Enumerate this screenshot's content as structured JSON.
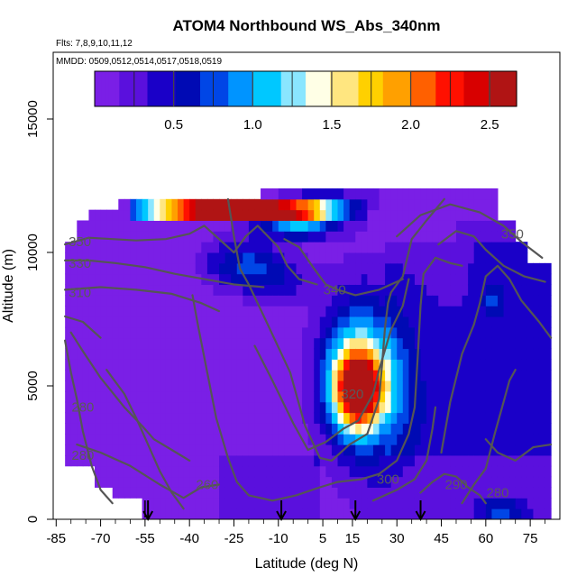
{
  "chart_data": {
    "type": "heatmap",
    "title": "ATOM4 Northbound WS_Abs_340nm",
    "flights_note": "Flts: 7,8,9,10,11,12",
    "dates_note": "MMDD: 0509,0512,0514,0517,0518,0519",
    "xlabel": "Latitude (deg N)",
    "ylabel": "Altitude (m)",
    "xlim": [
      -86,
      85
    ],
    "ylim": [
      0,
      17500
    ],
    "xticks": [
      -85,
      -70,
      -55,
      -40,
      -25,
      -10,
      5,
      15,
      30,
      45,
      60,
      75
    ],
    "xtick_labels": [
      "-85",
      "-70",
      "-55",
      "-40",
      "-25",
      "-10",
      "5",
      "15",
      "30",
      "45",
      "60",
      "75"
    ],
    "xminor": [
      -80,
      -75,
      -65,
      -60,
      -50,
      -45,
      -35,
      -30,
      -20,
      -15,
      -5,
      0,
      10,
      20,
      25,
      35,
      40,
      50,
      55,
      65,
      70,
      80
    ],
    "yticks": [
      0,
      5000,
      10000,
      15000
    ],
    "ytick_labels": [
      "0",
      "5000",
      "10000",
      "15000"
    ],
    "colorbar": {
      "min": 0.0,
      "max": 2.67,
      "ticks": [
        0.5,
        1.0,
        1.5,
        2.0,
        2.5
      ],
      "tick_labels": [
        "0.5",
        "1.0",
        "1.5",
        "2.0",
        "2.5"
      ],
      "colors": [
        "#7a1fe6",
        "#5a10dd",
        "#1a00c8",
        "#000ab4",
        "#0046e6",
        "#0094ff",
        "#00c8ff",
        "#8ae6ff",
        "#ffffe6",
        "#ffe680",
        "#ffd000",
        "#ffa000",
        "#ff6000",
        "#ff1000",
        "#d80000",
        "#b01414"
      ]
    },
    "arrows_latitude": [
      -54,
      -9,
      16,
      38
    ],
    "contour_labels": [
      {
        "text": "350",
        "lat": -77,
        "alt": 10400
      },
      {
        "text": "330",
        "lat": -77,
        "alt": 9600
      },
      {
        "text": "310",
        "lat": -77,
        "alt": 8500
      },
      {
        "text": "340",
        "lat": 9,
        "alt": 8600
      },
      {
        "text": "320",
        "lat": 15,
        "alt": 4700
      },
      {
        "text": "280",
        "lat": -76,
        "alt": 4200
      },
      {
        "text": "280",
        "lat": -76,
        "alt": 2400
      },
      {
        "text": "260",
        "lat": -34,
        "alt": 1300
      },
      {
        "text": "300",
        "lat": 27,
        "alt": 1500
      },
      {
        "text": "290",
        "lat": 50,
        "alt": 1300
      },
      {
        "text": "280",
        "lat": 64,
        "alt": 1000
      },
      {
        "text": "350",
        "lat": 69,
        "alt": 10700
      }
    ]
  }
}
